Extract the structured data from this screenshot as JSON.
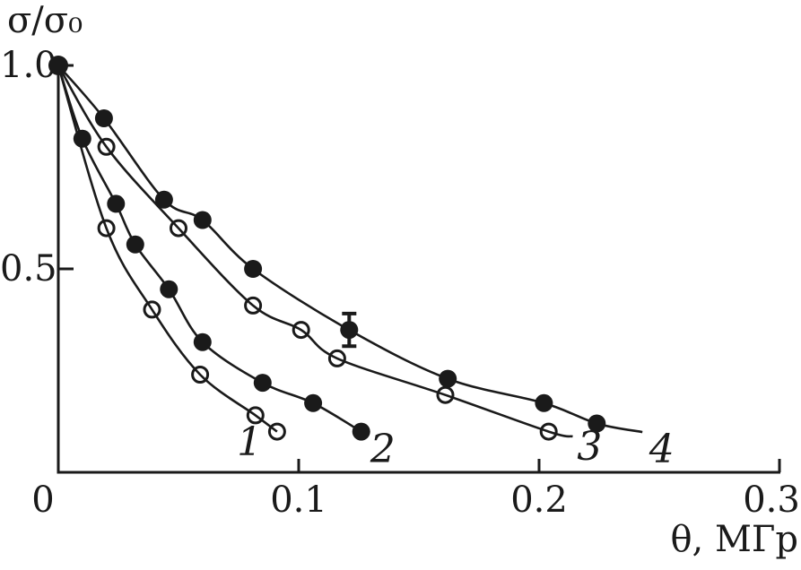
{
  "figure": {
    "background": "#ffffff",
    "ink_color": "#1a1a1a"
  },
  "chart_data": {
    "type": "line",
    "title": "",
    "ylabel": "σ/σ₀",
    "xlabel": "θ, МГр",
    "xlim": [
      0,
      0.31
    ],
    "ylim": [
      0,
      1.05
    ],
    "grid": false,
    "x_ticks": [
      {
        "value": 0,
        "label": "0"
      },
      {
        "value": 0.1,
        "label": "0.1"
      },
      {
        "value": 0.2,
        "label": "0.2"
      },
      {
        "value": 0.3,
        "label": "0.3"
      }
    ],
    "y_ticks": [
      {
        "value": 0.5,
        "label": "0.5"
      },
      {
        "value": 1.0,
        "label": "1.0"
      }
    ],
    "start_point": {
      "x": 0,
      "y": 1.0,
      "marker": "filled-circle"
    },
    "series": [
      {
        "name": "1",
        "marker": "open-circle",
        "x": [
          0,
          0.02,
          0.039,
          0.059,
          0.082,
          0.091
        ],
        "y": [
          1.0,
          0.6,
          0.4,
          0.24,
          0.14,
          0.1
        ],
        "label": {
          "text": "1",
          "x": 0.0795,
          "y": 0.073
        }
      },
      {
        "name": "2",
        "marker": "filled-circle",
        "x": [
          0,
          0.01,
          0.024,
          0.032,
          0.046,
          0.06,
          0.085,
          0.106,
          0.126
        ],
        "y": [
          1.0,
          0.82,
          0.66,
          0.56,
          0.45,
          0.32,
          0.22,
          0.17,
          0.1
        ],
        "label": {
          "text": "2",
          "x": 0.135,
          "y": 0.057
        }
      },
      {
        "name": "3",
        "marker": "open-circle",
        "x": [
          0,
          0.02,
          0.05,
          0.081,
          0.101,
          0.116,
          0.161,
          0.204
        ],
        "y": [
          1.0,
          0.8,
          0.6,
          0.41,
          0.35,
          0.28,
          0.19,
          0.1
        ],
        "line_end": [
          0.214,
          0.088
        ],
        "label": {
          "text": "3",
          "x": 0.221,
          "y": 0.062
        }
      },
      {
        "name": "4",
        "marker": "filled-circle",
        "x": [
          0,
          0.019,
          0.044,
          0.06,
          0.081,
          0.121,
          0.162,
          0.202,
          0.224
        ],
        "y": [
          1.0,
          0.87,
          0.67,
          0.62,
          0.5,
          0.35,
          0.23,
          0.17,
          0.12
        ],
        "error_bar": {
          "x": 0.121,
          "y_low": 0.31,
          "y_high": 0.39
        },
        "line_end": [
          0.243,
          0.099
        ],
        "label": {
          "text": "4",
          "x": 0.251,
          "y": 0.057
        }
      }
    ]
  }
}
